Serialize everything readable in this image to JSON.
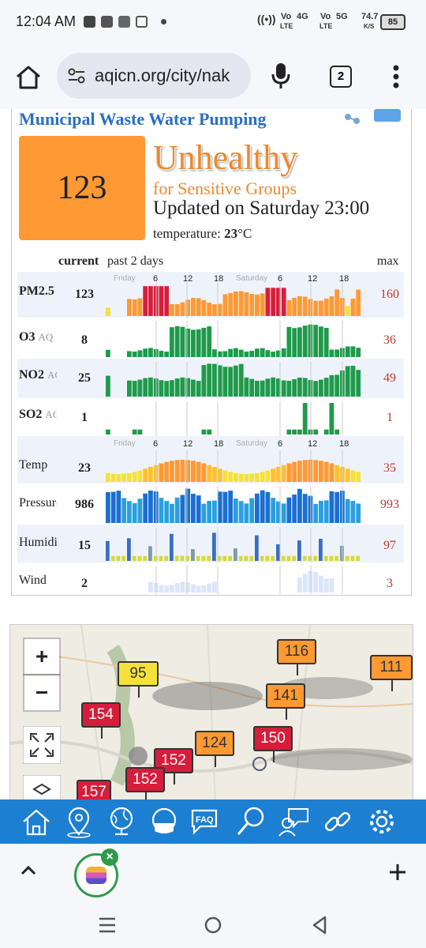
{
  "status_bar": {
    "time": "12:04 AM",
    "net1_top": "Vo",
    "net1_bottom": "LTE",
    "net1_gen": "4G",
    "net2_top": "Vo",
    "net2_bottom": "LTE",
    "net2_gen": "5G",
    "speed_top": "74.7",
    "speed_bottom": "K/S",
    "battery": "85"
  },
  "browser": {
    "url": "aqicn.org/city/nak",
    "tab_count": "2"
  },
  "station": {
    "name": "Municipal Waste Water Pumping",
    "aqi": "123",
    "aqi_color": "#ff9933",
    "status": "Unhealthy",
    "status_sub": "for Sensitive Groups",
    "updated": "Updated on Saturday 23:00",
    "temperature_label": "temperature:",
    "temperature_value": "23",
    "temperature_unit": "°C"
  },
  "table_header": {
    "current": "current",
    "past": "past 2 days",
    "max": "max"
  },
  "axis_labels": {
    "day1": "Friday",
    "day2": "Saturday",
    "h6": "6",
    "h12": "12",
    "h18": "18"
  },
  "rows": [
    {
      "name": "PM2.5",
      "suffix": "",
      "current": "123",
      "max": "160"
    },
    {
      "name": "O3",
      "suffix": "AQ",
      "current": "8",
      "max": "36"
    },
    {
      "name": "NO2",
      "suffix": "AQ",
      "current": "25",
      "max": "49"
    },
    {
      "name": "SO2",
      "suffix": "AQ",
      "current": "1",
      "max": "1"
    },
    {
      "name": "Temp",
      "suffix": "",
      "current": "23",
      "max": "35"
    },
    {
      "name": "Pressure",
      "suffix": "",
      "current": "986",
      "max": "993"
    },
    {
      "name": "Humidity",
      "suffix": "",
      "current": "15",
      "max": "97"
    },
    {
      "name": "Wind",
      "suffix": "",
      "current": "2",
      "max": "3"
    }
  ],
  "map_markers": [
    {
      "value": "116",
      "color": "#ff9933"
    },
    {
      "value": "111",
      "color": "#ff9933"
    },
    {
      "value": "95",
      "color": "#f5e13a"
    },
    {
      "value": "141",
      "color": "#ff9933"
    },
    {
      "value": "154",
      "color": "#d61e3c"
    },
    {
      "value": "124",
      "color": "#ff9933"
    },
    {
      "value": "150",
      "color": "#d61e3c"
    },
    {
      "value": "152",
      "color": "#d61e3c"
    },
    {
      "value": "152",
      "color": "#d61e3c"
    },
    {
      "value": "157",
      "color": "#d61e3c"
    }
  ],
  "map_controls": {
    "zoom_in": "+",
    "zoom_out": "−"
  },
  "aqi_nav": [
    "home-icon",
    "location-pin-icon",
    "globe-icon",
    "mask-icon",
    "faq-icon",
    "search-icon",
    "expert-icon",
    "link-icon",
    "settings-icon"
  ],
  "faq_label": "FAQ"
}
